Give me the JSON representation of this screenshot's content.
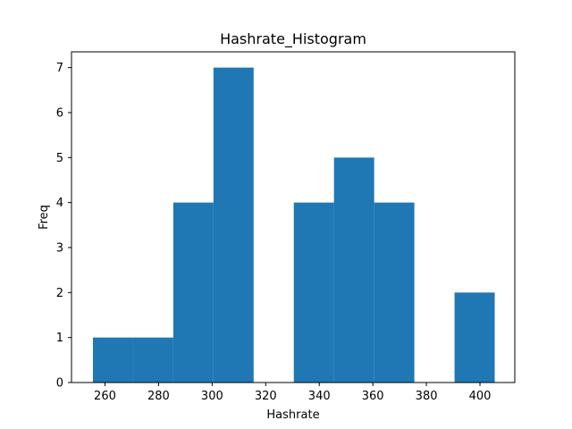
{
  "chart_data": {
    "type": "bar",
    "title": "Hashrate_Histogram",
    "xlabel": "Hashrate",
    "ylabel": "Freq",
    "xlim": [
      247.5,
      413
    ],
    "ylim": [
      0,
      7.35
    ],
    "xticks": [
      260,
      280,
      300,
      320,
      340,
      360,
      380,
      400
    ],
    "yticks": [
      0,
      1,
      2,
      3,
      4,
      5,
      6,
      7
    ],
    "bin_edges": [
      255.5,
      270.5,
      285.5,
      300.5,
      315.5,
      330.5,
      345.5,
      360.5,
      375.5,
      390.5,
      405.5
    ],
    "values": [
      1,
      1,
      4,
      7,
      0,
      4,
      5,
      4,
      0,
      2
    ],
    "bar_color": "#1f77b4",
    "grid": false
  }
}
